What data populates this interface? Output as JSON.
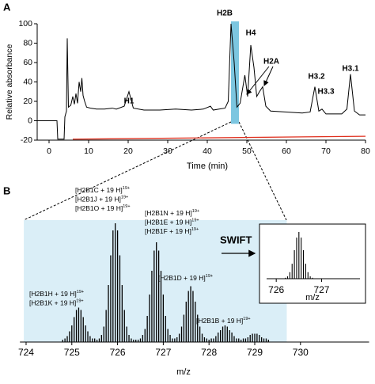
{
  "chart_data": [
    {
      "type": "line",
      "panel": "A",
      "ylabel": "Relative absorbance",
      "xlabel": "Time (min)",
      "xlim": [
        -3,
        80
      ],
      "ylim": [
        -20,
        100
      ],
      "xticks": [
        0,
        10,
        20,
        30,
        40,
        50,
        60,
        70,
        80
      ],
      "yticks": [
        -20,
        0,
        20,
        40,
        60,
        80,
        100
      ],
      "highlight": {
        "xlim": [
          46,
          48
        ],
        "color": "#7cc6e0"
      },
      "series": [
        {
          "color": "#000000",
          "x": [
            -3,
            2.0,
            2.2,
            3.8,
            4.0,
            4.4,
            4.6,
            4.9,
            5.5,
            6.0,
            6.4,
            6.8,
            7.2,
            7.6,
            8.0,
            8.3,
            8.6,
            9.0,
            9.5,
            10.5,
            12,
            14,
            16,
            17,
            19,
            20.2,
            21.3,
            24,
            28,
            32,
            36,
            39,
            40.8,
            41.5,
            43,
            44.5,
            45.3,
            46,
            46.8,
            47.5,
            48.3,
            49.5,
            50.2,
            51,
            51.8,
            52.5,
            53.2,
            54,
            54.8,
            56,
            60,
            64,
            66,
            67.2,
            68.2,
            69,
            70,
            74,
            75.3,
            76.2,
            77.2,
            78.5,
            80
          ],
          "values": [
            0,
            0,
            -19,
            -19,
            4,
            10,
            85,
            14,
            16,
            25,
            17,
            28,
            18,
            40,
            30,
            44,
            26,
            20,
            14,
            13,
            12,
            12,
            13,
            12,
            15,
            30,
            13,
            11,
            11,
            12,
            11,
            12,
            15,
            11,
            12,
            13,
            20,
            100,
            60,
            14,
            18,
            47,
            25,
            78,
            55,
            25,
            30,
            35,
            15,
            10,
            9,
            8,
            9,
            35,
            10,
            12,
            7,
            7,
            12,
            48,
            10,
            6,
            6
          ]
        },
        {
          "color": "#e0301e",
          "x": [
            6,
            80
          ],
          "values": [
            -19,
            -16
          ]
        }
      ],
      "annotations": [
        {
          "text": "H1"
        },
        {
          "text": "H2B"
        },
        {
          "text": "H4"
        },
        {
          "text": "H2A"
        },
        {
          "text": "H3.2"
        },
        {
          "text": "H3.3"
        },
        {
          "text": "H3.1"
        }
      ]
    },
    {
      "type": "stem",
      "panel": "B",
      "xlabel": "m/z",
      "xlim": [
        723.9,
        731.5
      ],
      "ylim": [
        0,
        100
      ],
      "xticks": [
        724,
        725,
        726,
        727,
        728,
        729,
        730
      ],
      "highlight": {
        "xlim": [
          723.95,
          729.7
        ],
        "color": "#daeef7"
      },
      "color": "#000000",
      "x": [
        724.8,
        724.85,
        724.9,
        724.95,
        725.0,
        725.05,
        725.1,
        725.15,
        725.2,
        725.25,
        725.3,
        725.35,
        725.4,
        725.45,
        725.5,
        725.55,
        725.6,
        725.65,
        725.7,
        725.75,
        725.8,
        725.85,
        725.9,
        725.95,
        726.0,
        726.05,
        726.1,
        726.15,
        726.2,
        726.25,
        726.3,
        726.35,
        726.4,
        726.45,
        726.5,
        726.55,
        726.6,
        726.65,
        726.7,
        726.75,
        726.8,
        726.85,
        726.9,
        726.95,
        727.0,
        727.05,
        727.1,
        727.15,
        727.2,
        727.25,
        727.3,
        727.35,
        727.4,
        727.45,
        727.5,
        727.55,
        727.6,
        727.65,
        727.7,
        727.75,
        727.8,
        727.85,
        727.9,
        727.95,
        728.0,
        728.05,
        728.1,
        728.15,
        728.2,
        728.25,
        728.3,
        728.35,
        728.4,
        728.45,
        728.5,
        728.55,
        728.6,
        728.65,
        728.7,
        728.75,
        728.8,
        728.85,
        728.9,
        728.95,
        729.0,
        729.05,
        729.1,
        729.15,
        729.2,
        729.25,
        729.3
      ],
      "values": [
        2,
        3,
        5,
        9,
        14,
        21,
        27,
        29,
        27,
        21,
        14,
        9,
        5,
        3,
        3,
        2,
        3,
        6,
        13,
        27,
        48,
        73,
        94,
        100,
        94,
        73,
        48,
        27,
        13,
        6,
        3,
        2,
        2,
        2,
        3,
        6,
        11,
        22,
        40,
        60,
        77,
        84,
        77,
        60,
        40,
        22,
        11,
        6,
        3,
        3,
        4,
        7,
        13,
        23,
        34,
        43,
        47,
        43,
        34,
        23,
        13,
        7,
        4,
        3,
        2,
        3,
        3,
        5,
        8,
        10,
        13,
        14,
        13,
        10,
        8,
        5,
        3,
        3,
        2,
        3,
        3,
        4,
        6,
        7,
        7,
        7,
        6,
        4,
        3,
        3,
        2
      ],
      "arrow_label": "SWIFT",
      "annotations": [
        {
          "lines": [
            {
              "text": "[H2B1C + 19 H]",
              "sup": "19+"
            },
            {
              "text": "[H2B1J + 19 H]",
              "sup": "19+"
            },
            {
              "text": "[H2B1O + 19 H]",
              "sup": "19+"
            }
          ]
        },
        {
          "lines": [
            {
              "text": "[H2B1N + 19 H]",
              "sup": "19+"
            },
            {
              "text": "[H2B1E + 19 H]",
              "sup": "19+"
            },
            {
              "text": "[H2B1F + 19 H]",
              "sup": "19+"
            }
          ]
        },
        {
          "lines": [
            {
              "text": "[H2B1H + 19 H]",
              "sup": "19+"
            },
            {
              "text": "[H2B1K + 19 H]",
              "sup": "19+"
            }
          ]
        },
        {
          "lines": [
            {
              "text": "[H2B1D + 19 H]",
              "sup": "19+"
            }
          ]
        },
        {
          "lines": [
            {
              "text": "[H2B1B + 19 H]",
              "sup": "19+"
            }
          ]
        }
      ]
    },
    {
      "type": "stem",
      "xlabel": "m/z",
      "xlim": [
        725.7,
        727.9
      ],
      "ylim": [
        0,
        100
      ],
      "xticks": [
        726,
        727
      ],
      "color": "#000000",
      "x": [
        726.2,
        726.25,
        726.3,
        726.35,
        726.4,
        726.45,
        726.5,
        726.55,
        726.6,
        726.65,
        726.7,
        726.75,
        726.8
      ],
      "values": [
        2,
        5,
        14,
        32,
        61,
        88,
        100,
        88,
        61,
        32,
        14,
        5,
        2
      ]
    }
  ]
}
